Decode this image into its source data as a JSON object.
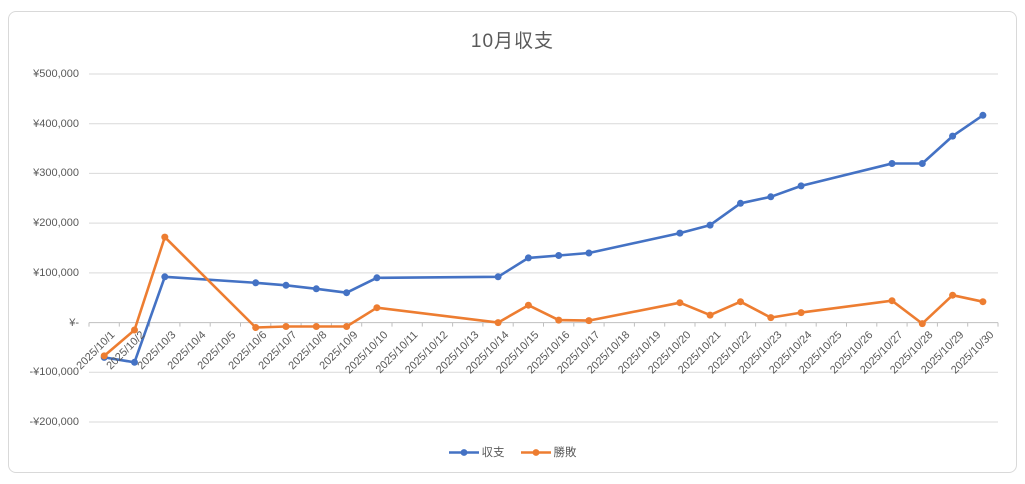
{
  "chart_data": {
    "type": "line",
    "title": "10月収支",
    "x": [
      "2025/10/1",
      "2025/10/2",
      "2025/10/3",
      "2025/10/4",
      "2025/10/5",
      "2025/10/6",
      "2025/10/7",
      "2025/10/8",
      "2025/10/9",
      "2025/10/10",
      "2025/10/11",
      "2025/10/12",
      "2025/10/13",
      "2025/10/14",
      "2025/10/15",
      "2025/10/16",
      "2025/10/17",
      "2025/10/18",
      "2025/10/19",
      "2025/10/20",
      "2025/10/21",
      "2025/10/22",
      "2025/10/23",
      "2025/10/24",
      "2025/10/25",
      "2025/10/26",
      "2025/10/27",
      "2025/10/28",
      "2025/10/29",
      "2025/10/30"
    ],
    "series": [
      {
        "name": "収支",
        "color": "#4472C4",
        "values": [
          -70000,
          -80000,
          92000,
          null,
          null,
          80000,
          75000,
          68000,
          60000,
          90000,
          null,
          null,
          null,
          92000,
          130000,
          135000,
          140000,
          null,
          null,
          180000,
          196000,
          240000,
          253000,
          275000,
          null,
          null,
          320000,
          320000,
          375000,
          417000
        ]
      },
      {
        "name": "勝敗",
        "color": "#ED7D31",
        "values": [
          -67000,
          -15000,
          172000,
          null,
          null,
          -10000,
          -8000,
          -8000,
          -8000,
          30000,
          null,
          null,
          null,
          0,
          35000,
          5000,
          4000,
          null,
          null,
          40000,
          15000,
          42000,
          10000,
          20000,
          null,
          null,
          44000,
          -2000,
          55000,
          42000
        ]
      }
    ],
    "ylim": [
      -200000,
      500000
    ],
    "ytick_interval": 100000,
    "ytick_labels_top_to_bottom": [
      "¥500,000",
      "¥400,000",
      "¥300,000",
      "¥200,000",
      "¥100,000",
      "¥-",
      "-¥100,000",
      "-¥200,000"
    ],
    "grid": true,
    "legend_position": "bottom",
    "connect_gaps": true,
    "style": {
      "gridline_color": "#D9D9D9",
      "axis_color": "#BFBFBF",
      "text_color": "#595959",
      "title_color": "#595959"
    }
  }
}
